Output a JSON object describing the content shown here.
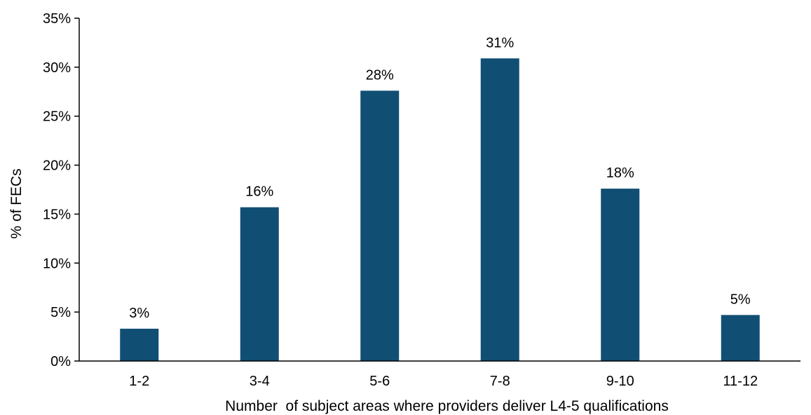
{
  "chart_data": {
    "type": "bar",
    "title": "",
    "xlabel": "Number  of subject areas where providers deliver L4-5 qualifications",
    "ylabel": "% of FECs",
    "categories": [
      "1-2",
      "3-4",
      "5-6",
      "7-8",
      "9-10",
      "11-12"
    ],
    "values": [
      3.3,
      15.7,
      27.6,
      30.9,
      17.6,
      4.7
    ],
    "data_labels": [
      "3%",
      "16%",
      "28%",
      "31%",
      "18%",
      "5%"
    ],
    "ylim": [
      0,
      35
    ],
    "yticks": [
      0,
      5,
      10,
      15,
      20,
      25,
      30,
      35
    ],
    "ytick_labels": [
      "0%",
      "5%",
      "10%",
      "15%",
      "20%",
      "25%",
      "30%",
      "35%"
    ],
    "grid": false,
    "legend": "none",
    "bar_color": "#114e74",
    "axis_color": "#000000"
  }
}
